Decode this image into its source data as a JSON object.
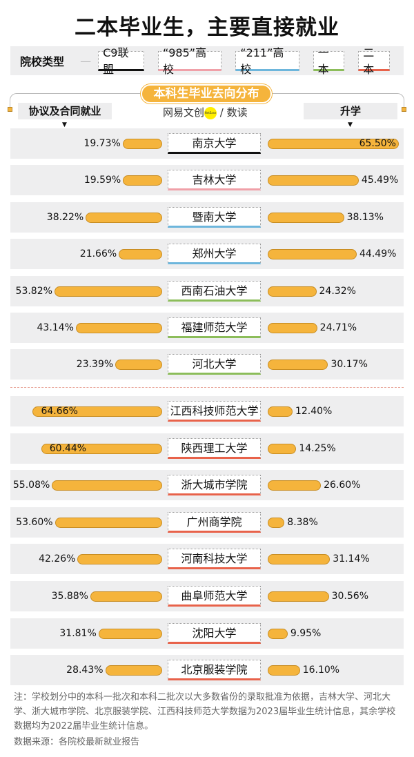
{
  "title": "二本毕业生，主要直接就业",
  "legend": {
    "label": "院校类型",
    "dash": "—",
    "items": [
      {
        "label": "C9联盟",
        "color": "#111111"
      },
      {
        "label": "“985”高校",
        "color": "#f0a0a8"
      },
      {
        "label": "“211”高校",
        "color": "#6db6dc"
      },
      {
        "label": "一本",
        "color": "#8cbd5a"
      },
      {
        "label": "二本",
        "color": "#e8624a"
      }
    ]
  },
  "banner": "本科生毕业去向分布",
  "brand": {
    "name": "网易文创",
    "badge": "NetEase",
    "suffix": "/ 数读"
  },
  "chart_data": {
    "type": "bar",
    "title": "本科生毕业去向分布",
    "series": [
      {
        "name": "协议及合同就业",
        "direction": "left"
      },
      {
        "name": "升学",
        "direction": "right"
      }
    ],
    "bar_color": "#f5b43c",
    "rows": [
      {
        "name": "南京大学",
        "type": "C9联盟",
        "employ": "19.73%",
        "study": "65.50%",
        "e": 19.73,
        "s": 65.5
      },
      {
        "name": "吉林大学",
        "type": "“985”高校",
        "employ": "19.59%",
        "study": "45.49%",
        "e": 19.59,
        "s": 45.49
      },
      {
        "name": "暨南大学",
        "type": "“211”高校",
        "employ": "38.22%",
        "study": "38.13%",
        "e": 38.22,
        "s": 38.13
      },
      {
        "name": "郑州大学",
        "type": "“211”高校",
        "employ": "21.66%",
        "study": "44.49%",
        "e": 21.66,
        "s": 44.49
      },
      {
        "name": "西南石油大学",
        "type": "一本",
        "employ": "53.82%",
        "study": "24.32%",
        "e": 53.82,
        "s": 24.32
      },
      {
        "name": "福建师范大学",
        "type": "一本",
        "employ": "43.14%",
        "study": "24.71%",
        "e": 43.14,
        "s": 24.71
      },
      {
        "name": "河北大学",
        "type": "一本",
        "employ": "23.39%",
        "study": "30.17%",
        "e": 23.39,
        "s": 30.17
      },
      {
        "name": "江西科技师范大学",
        "type": "二本",
        "employ": "64.66%",
        "study": "12.40%",
        "e": 64.66,
        "s": 12.4
      },
      {
        "name": "陕西理工大学",
        "type": "二本",
        "employ": "60.44%",
        "study": "14.25%",
        "e": 60.44,
        "s": 14.25
      },
      {
        "name": "浙大城市学院",
        "type": "二本",
        "employ": "55.08%",
        "study": "26.60%",
        "e": 55.08,
        "s": 26.6
      },
      {
        "name": "广州商学院",
        "type": "二本",
        "employ": "53.60%",
        "study": "8.38%",
        "e": 53.6,
        "s": 8.38
      },
      {
        "name": "河南科技大学",
        "type": "二本",
        "employ": "42.26%",
        "study": "31.14%",
        "e": 42.26,
        "s": 31.14
      },
      {
        "name": "曲阜师范大学",
        "type": "二本",
        "employ": "35.88%",
        "study": "30.56%",
        "e": 35.88,
        "s": 30.56
      },
      {
        "name": "沈阳大学",
        "type": "二本",
        "employ": "31.81%",
        "study": "9.95%",
        "e": 31.81,
        "s": 9.95
      },
      {
        "name": "北京服装学院",
        "type": "二本",
        "employ": "28.43%",
        "study": "16.10%",
        "e": 28.43,
        "s": 16.1
      }
    ]
  },
  "note": "注：学校划分中的本科一批次和本科二批次以大多数省份的录取批准为依据，吉林大学、河北大学、浙大城市学院、北京服装学院、江西科技师范大学数据为2023届毕业生统计信息，其余学校数据均为2022届毕业生统计信息。",
  "source": "数据来源：各院校最新就业报告"
}
